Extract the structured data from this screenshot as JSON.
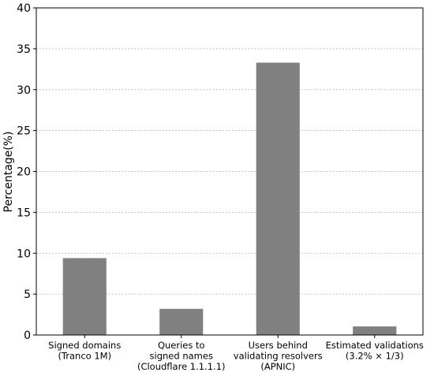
{
  "chart_data": {
    "type": "bar",
    "categories": [
      [
        "Signed domains",
        "(Tranco 1M)"
      ],
      [
        "Queries to",
        "signed names",
        "(Cloudflare 1.1.1.1)"
      ],
      [
        "Users behind",
        "validating resolvers",
        "(APNIC)"
      ],
      [
        "Estimated validations",
        "(3.2% × 1/3)"
      ]
    ],
    "values": [
      9.4,
      3.2,
      33.3,
      1.05
    ],
    "title": "",
    "xlabel": "",
    "ylabel": "Percentage(%)",
    "ylim": [
      0,
      40
    ],
    "yticks": [
      0,
      5,
      10,
      15,
      20,
      25,
      30,
      35,
      40
    ],
    "grid": "horizontal-dotted",
    "legend": "none",
    "colors": {
      "bar": "#808080",
      "grid": "#b0b0b0",
      "axis": "#000000"
    }
  }
}
